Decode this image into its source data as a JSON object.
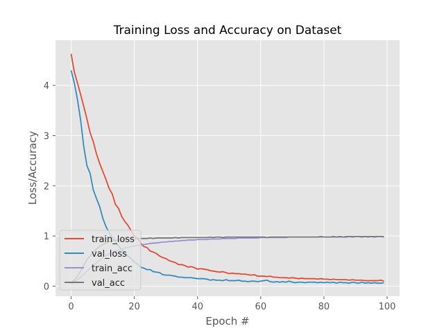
{
  "chart_data": {
    "type": "line",
    "title": "Training Loss and Accuracy on Dataset",
    "xlabel": "Epoch #",
    "ylabel": "Loss/Accuracy",
    "xlim": [
      -4.95,
      103.95
    ],
    "ylim": [
      -0.2,
      4.9
    ],
    "xticks": [
      0,
      20,
      40,
      60,
      80,
      100
    ],
    "yticks": [
      0,
      1,
      2,
      3,
      4
    ],
    "grid": true,
    "legend_position": "lower-left",
    "colors": {
      "background": "#e5e5e5",
      "grid": "#ffffff",
      "train_loss": "#e24a33",
      "val_loss": "#348abd",
      "train_acc": "#988ed5",
      "val_acc": "#777777"
    },
    "series": [
      {
        "name": "train_loss",
        "color": "#e24a33",
        "x_start": 0,
        "x_step": 1,
        "values": [
          4.63,
          4.27,
          4.05,
          3.82,
          3.58,
          3.33,
          3.06,
          2.88,
          2.64,
          2.45,
          2.29,
          2.13,
          1.95,
          1.84,
          1.63,
          1.55,
          1.39,
          1.29,
          1.21,
          1.1,
          1.0,
          0.95,
          0.86,
          0.79,
          0.77,
          0.7,
          0.68,
          0.65,
          0.6,
          0.57,
          0.55,
          0.51,
          0.49,
          0.47,
          0.43,
          0.43,
          0.41,
          0.38,
          0.39,
          0.37,
          0.34,
          0.35,
          0.34,
          0.33,
          0.31,
          0.3,
          0.29,
          0.28,
          0.29,
          0.27,
          0.25,
          0.26,
          0.25,
          0.25,
          0.24,
          0.24,
          0.23,
          0.22,
          0.23,
          0.2,
          0.2,
          0.2,
          0.19,
          0.2,
          0.18,
          0.18,
          0.17,
          0.17,
          0.17,
          0.16,
          0.17,
          0.16,
          0.15,
          0.16,
          0.15,
          0.15,
          0.15,
          0.15,
          0.14,
          0.15,
          0.14,
          0.14,
          0.13,
          0.14,
          0.13,
          0.13,
          0.13,
          0.13,
          0.12,
          0.13,
          0.12,
          0.12,
          0.12,
          0.11,
          0.11,
          0.11,
          0.11,
          0.11,
          0.12,
          0.1
        ]
      },
      {
        "name": "val_loss",
        "color": "#348abd",
        "x_start": 0,
        "x_step": 1,
        "values": [
          4.3,
          4.05,
          3.72,
          3.31,
          2.78,
          2.4,
          2.25,
          1.92,
          1.75,
          1.59,
          1.36,
          1.19,
          1.07,
          0.98,
          0.88,
          0.8,
          0.73,
          0.67,
          0.6,
          0.55,
          0.48,
          0.44,
          0.38,
          0.36,
          0.33,
          0.33,
          0.29,
          0.28,
          0.27,
          0.23,
          0.22,
          0.22,
          0.21,
          0.2,
          0.18,
          0.18,
          0.17,
          0.17,
          0.17,
          0.16,
          0.15,
          0.15,
          0.15,
          0.14,
          0.12,
          0.13,
          0.12,
          0.12,
          0.11,
          0.13,
          0.11,
          0.11,
          0.11,
          0.12,
          0.1,
          0.1,
          0.09,
          0.1,
          0.1,
          0.09,
          0.1,
          0.11,
          0.12,
          0.09,
          0.08,
          0.09,
          0.08,
          0.09,
          0.08,
          0.1,
          0.08,
          0.07,
          0.08,
          0.08,
          0.07,
          0.08,
          0.08,
          0.08,
          0.07,
          0.08,
          0.07,
          0.08,
          0.07,
          0.08,
          0.06,
          0.08,
          0.07,
          0.07,
          0.06,
          0.08,
          0.07,
          0.06,
          0.08,
          0.06,
          0.07,
          0.06,
          0.07,
          0.06,
          0.06,
          0.07
        ]
      },
      {
        "name": "train_acc",
        "color": "#988ed5",
        "x_start": 0,
        "x_step": 1,
        "values": [
          0.05,
          0.09,
          0.13,
          0.18,
          0.24,
          0.3,
          0.36,
          0.42,
          0.47,
          0.52,
          0.57,
          0.61,
          0.64,
          0.67,
          0.7,
          0.72,
          0.74,
          0.76,
          0.77,
          0.79,
          0.8,
          0.81,
          0.82,
          0.83,
          0.84,
          0.85,
          0.86,
          0.86,
          0.87,
          0.88,
          0.88,
          0.89,
          0.89,
          0.9,
          0.9,
          0.91,
          0.91,
          0.92,
          0.92,
          0.92,
          0.93,
          0.93,
          0.93,
          0.93,
          0.94,
          0.94,
          0.94,
          0.94,
          0.95,
          0.95,
          0.95,
          0.95,
          0.95,
          0.96,
          0.96,
          0.96,
          0.96,
          0.96,
          0.96,
          0.96,
          0.97,
          0.97,
          0.97,
          0.97,
          0.97,
          0.97,
          0.97,
          0.97,
          0.97,
          0.98,
          0.98,
          0.98,
          0.98,
          0.98,
          0.98,
          0.98,
          0.98,
          0.98,
          0.98,
          0.98,
          0.98,
          0.98,
          0.98,
          0.98,
          0.98,
          0.98,
          0.98,
          0.99,
          0.99,
          0.99,
          0.99,
          0.99,
          0.99,
          0.99,
          0.99,
          0.99,
          0.99,
          0.99,
          0.99,
          0.99
        ]
      },
      {
        "name": "val_acc",
        "color": "#777777",
        "x_start": 0,
        "x_step": 1,
        "values": [
          0.07,
          0.12,
          0.2,
          0.3,
          0.42,
          0.53,
          0.6,
          0.68,
          0.74,
          0.79,
          0.83,
          0.86,
          0.88,
          0.9,
          0.91,
          0.92,
          0.93,
          0.93,
          0.94,
          0.94,
          0.94,
          0.95,
          0.95,
          0.95,
          0.95,
          0.96,
          0.95,
          0.96,
          0.96,
          0.96,
          0.96,
          0.96,
          0.96,
          0.97,
          0.96,
          0.97,
          0.97,
          0.97,
          0.97,
          0.97,
          0.97,
          0.97,
          0.97,
          0.97,
          0.98,
          0.97,
          0.98,
          0.98,
          0.97,
          0.98,
          0.98,
          0.98,
          0.98,
          0.98,
          0.98,
          0.98,
          0.98,
          0.98,
          0.98,
          0.98,
          0.98,
          0.98,
          0.97,
          0.98,
          0.98,
          0.98,
          0.98,
          0.98,
          0.98,
          0.98,
          0.98,
          0.98,
          0.98,
          0.98,
          0.98,
          0.98,
          0.98,
          0.98,
          0.98,
          0.99,
          0.98,
          0.98,
          0.98,
          0.99,
          0.98,
          0.99,
          0.98,
          0.98,
          0.99,
          0.98,
          0.99,
          0.99,
          0.98,
          0.99,
          0.98,
          0.99,
          0.98,
          0.99,
          0.99,
          0.98
        ]
      }
    ]
  }
}
